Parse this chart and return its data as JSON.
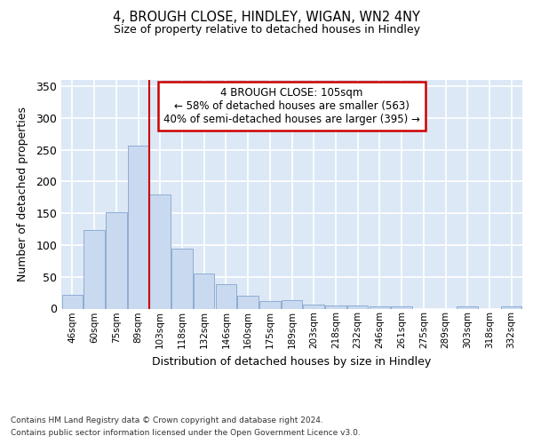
{
  "title": "4, BROUGH CLOSE, HINDLEY, WIGAN, WN2 4NY",
  "subtitle": "Size of property relative to detached houses in Hindley",
  "xlabel": "Distribution of detached houses by size in Hindley",
  "ylabel": "Number of detached properties",
  "categories": [
    "46sqm",
    "60sqm",
    "75sqm",
    "89sqm",
    "103sqm",
    "118sqm",
    "132sqm",
    "146sqm",
    "160sqm",
    "175sqm",
    "189sqm",
    "203sqm",
    "218sqm",
    "232sqm",
    "246sqm",
    "261sqm",
    "275sqm",
    "289sqm",
    "303sqm",
    "318sqm",
    "332sqm"
  ],
  "values": [
    22,
    124,
    151,
    257,
    180,
    95,
    55,
    38,
    20,
    12,
    13,
    6,
    5,
    5,
    4,
    4,
    0,
    0,
    3,
    0,
    3
  ],
  "bar_color": "#c9d9ef",
  "bar_edge_color": "#8eadd4",
  "vline_x_index": 4,
  "vline_color": "#cc0000",
  "annotation_text": "4 BROUGH CLOSE: 105sqm\n← 58% of detached houses are smaller (563)\n40% of semi-detached houses are larger (395) →",
  "annotation_box_color": "#ffffff",
  "annotation_box_edge": "#cc0000",
  "background_color": "#ffffff",
  "plot_background": "#dce8f5",
  "grid_color": "#ffffff",
  "ylim": [
    0,
    360
  ],
  "yticks": [
    0,
    50,
    100,
    150,
    200,
    250,
    300,
    350
  ],
  "footer_line1": "Contains HM Land Registry data © Crown copyright and database right 2024.",
  "footer_line2": "Contains public sector information licensed under the Open Government Licence v3.0."
}
